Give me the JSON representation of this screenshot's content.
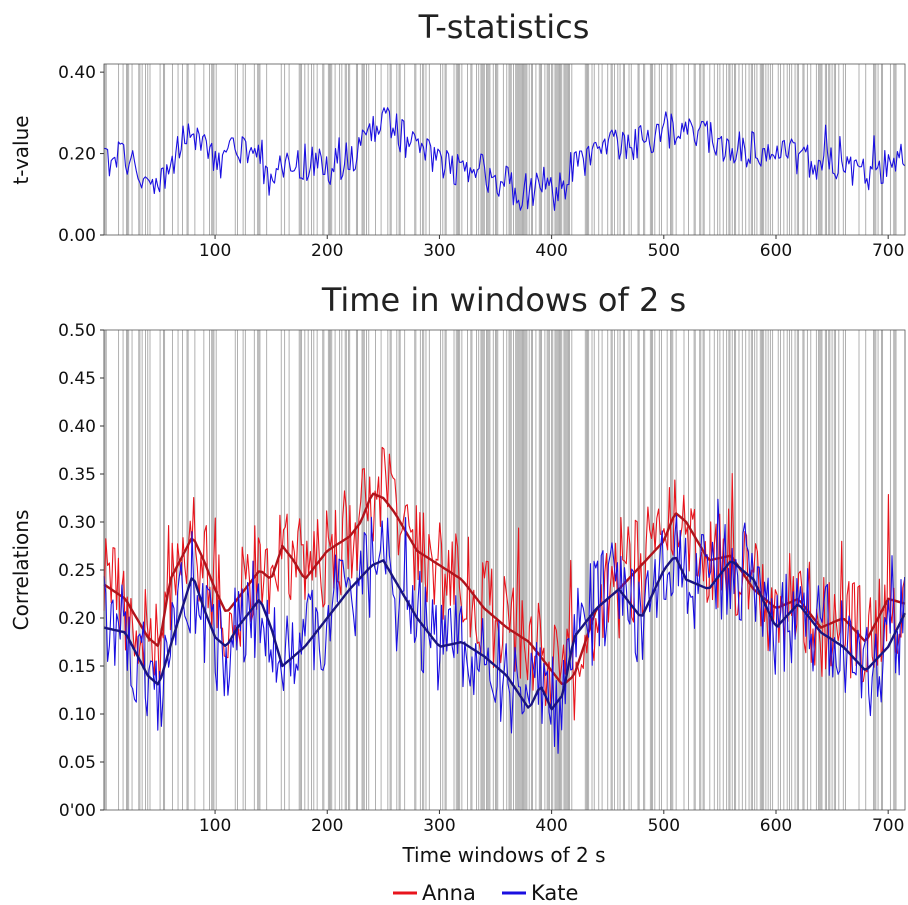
{
  "chart_data": [
    {
      "type": "line",
      "title": "T-statistics",
      "xlabel": "",
      "ylabel": "t-value",
      "xlim": [
        1,
        715
      ],
      "ylim": [
        0,
        0.42
      ],
      "x_ticks": [
        "100",
        "200",
        "300",
        "400",
        "500",
        "600",
        "700"
      ],
      "y_ticks": [
        "0.00",
        "0.20",
        "0.40"
      ],
      "grid": "vertical gray lines marking significant windows",
      "series": [
        {
          "color": "#1a0fe0",
          "x": [
            1,
            20,
            40,
            50,
            60,
            75,
            80,
            90,
            100,
            120,
            140,
            150,
            160,
            180,
            200,
            220,
            240,
            250,
            260,
            280,
            300,
            320,
            340,
            360,
            370,
            380,
            390,
            400,
            410,
            420,
            440,
            460,
            480,
            500,
            520,
            540,
            560,
            580,
            600,
            620,
            640,
            660,
            680,
            700,
            715
          ],
          "values": [
            0.18,
            0.2,
            0.11,
            0.13,
            0.17,
            0.24,
            0.27,
            0.21,
            0.18,
            0.2,
            0.19,
            0.12,
            0.16,
            0.18,
            0.16,
            0.19,
            0.25,
            0.29,
            0.26,
            0.21,
            0.18,
            0.16,
            0.15,
            0.13,
            0.1,
            0.11,
            0.13,
            0.1,
            0.12,
            0.18,
            0.19,
            0.22,
            0.23,
            0.26,
            0.25,
            0.24,
            0.21,
            0.22,
            0.2,
            0.19,
            0.18,
            0.16,
            0.14,
            0.17,
            0.19
          ]
        }
      ]
    },
    {
      "type": "line",
      "title": "Time in windows of 2 s",
      "xlabel": "Time windows of 2 s",
      "ylabel": "Correlations",
      "xlim": [
        1,
        715
      ],
      "ylim": [
        0,
        0.5
      ],
      "x_ticks": [
        "100",
        "200",
        "300",
        "400",
        "500",
        "600",
        "700"
      ],
      "y_ticks": [
        "0'00",
        "0.05",
        "0.10",
        "0.15",
        "0.20",
        "0.25",
        "0.30",
        "0.35",
        "0.40",
        "0.45",
        "0.50"
      ],
      "grid": "vertical gray lines marking significant windows",
      "legend": "bottom-center",
      "series": [
        {
          "name": "Anna",
          "color": "#e8141c",
          "smooth_color": "#b0141c",
          "x": [
            1,
            20,
            40,
            50,
            60,
            80,
            90,
            100,
            110,
            120,
            140,
            150,
            160,
            170,
            180,
            200,
            220,
            230,
            240,
            250,
            260,
            280,
            300,
            320,
            340,
            360,
            380,
            390,
            400,
            410,
            420,
            440,
            460,
            480,
            500,
            510,
            520,
            540,
            560,
            580,
            600,
            620,
            640,
            660,
            680,
            700,
            715
          ],
          "values": [
            0.235,
            0.22,
            0.18,
            0.17,
            0.24,
            0.285,
            0.26,
            0.23,
            0.205,
            0.22,
            0.25,
            0.24,
            0.275,
            0.26,
            0.24,
            0.27,
            0.285,
            0.3,
            0.33,
            0.325,
            0.31,
            0.27,
            0.255,
            0.24,
            0.21,
            0.19,
            0.175,
            0.16,
            0.145,
            0.13,
            0.14,
            0.21,
            0.23,
            0.255,
            0.28,
            0.31,
            0.3,
            0.26,
            0.265,
            0.23,
            0.21,
            0.22,
            0.19,
            0.2,
            0.175,
            0.22,
            0.215
          ]
        },
        {
          "name": "Kate",
          "color": "#1a0fe0",
          "smooth_color": "#1a1480",
          "x": [
            1,
            20,
            40,
            50,
            60,
            80,
            90,
            100,
            110,
            120,
            140,
            150,
            160,
            180,
            200,
            220,
            240,
            250,
            260,
            280,
            300,
            320,
            340,
            360,
            380,
            390,
            400,
            410,
            420,
            440,
            460,
            480,
            500,
            510,
            520,
            540,
            560,
            580,
            600,
            620,
            640,
            660,
            680,
            700,
            715
          ],
          "values": [
            0.19,
            0.185,
            0.14,
            0.13,
            0.17,
            0.245,
            0.21,
            0.18,
            0.17,
            0.19,
            0.22,
            0.19,
            0.15,
            0.17,
            0.2,
            0.23,
            0.255,
            0.26,
            0.24,
            0.2,
            0.17,
            0.175,
            0.16,
            0.14,
            0.105,
            0.13,
            0.105,
            0.12,
            0.18,
            0.21,
            0.23,
            0.2,
            0.25,
            0.265,
            0.24,
            0.23,
            0.26,
            0.24,
            0.19,
            0.215,
            0.185,
            0.17,
            0.145,
            0.17,
            0.205
          ]
        }
      ]
    }
  ]
}
